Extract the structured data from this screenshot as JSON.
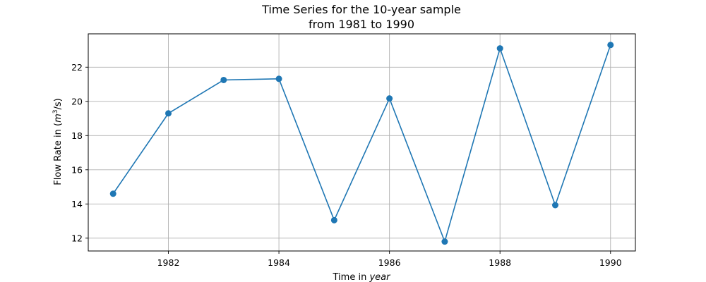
{
  "chart_data": {
    "type": "line",
    "title_line1": "Time Series for the 10-year sample",
    "title_line2": "from 1981 to 1990",
    "xlabel_text": "Time in ",
    "xlabel_unit": "year",
    "ylabel_text": "Flow Rate in (",
    "ylabel_unit_base": "m",
    "ylabel_unit_exp": "3",
    "ylabel_unit_rest": "/s)",
    "x": [
      1981,
      1982,
      1983,
      1984,
      1985,
      1986,
      1987,
      1988,
      1989,
      1990
    ],
    "y": [
      14.6,
      19.3,
      21.25,
      21.32,
      13.05,
      20.17,
      11.8,
      23.1,
      13.93,
      23.3
    ],
    "xlim": [
      1980.55,
      1990.45
    ],
    "ylim": [
      11.25,
      23.95
    ],
    "xticks": [
      1982,
      1984,
      1986,
      1988,
      1990
    ],
    "yticks": [
      12,
      14,
      16,
      18,
      20,
      22
    ],
    "grid": true,
    "series_color": "#1f77b4"
  }
}
